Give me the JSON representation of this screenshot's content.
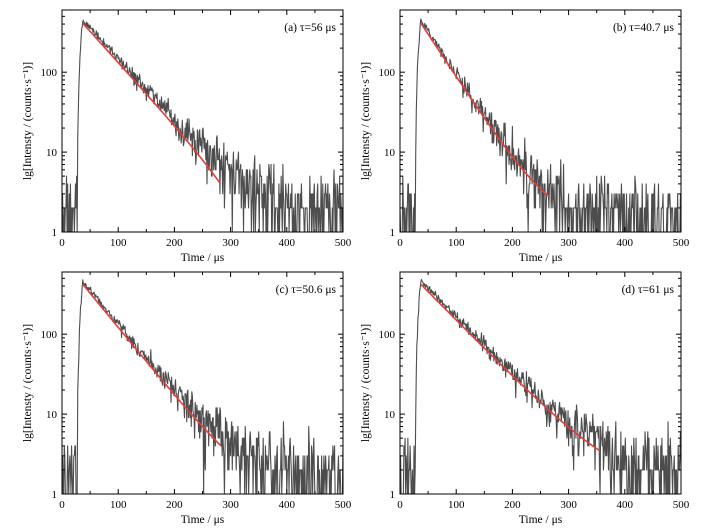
{
  "figure": {
    "background": "#ffffff",
    "data_color": "#4d4d4d",
    "fit_color": "#e0403a",
    "axis_color": "#000000"
  },
  "chart_data": [
    {
      "type": "line",
      "panel": "a",
      "annotation": "(a) τ=56 μs",
      "xlabel": "Time / μs",
      "ylabel": "lg[Intensty / (counts·s⁻¹)]",
      "xlim": [
        0,
        500
      ],
      "ylim": [
        1,
        600
      ],
      "yscale": "log",
      "xticks": [
        0,
        100,
        200,
        300,
        400,
        500
      ],
      "yticks": [
        1,
        10,
        100
      ],
      "grid": false,
      "series": [
        {
          "role": "measured decay",
          "peak_time": 37,
          "peak_value": 450,
          "tau": 56,
          "baseline": 1.6,
          "rise_start": 27,
          "x": [
            25,
            29,
            33,
            37,
            50,
            75,
            100,
            125,
            150,
            175,
            200,
            225,
            250,
            275,
            300,
            350,
            400,
            450,
            500
          ],
          "y": [
            1,
            60,
            380,
            450,
            360,
            230,
            145,
            92,
            60,
            38,
            25,
            16,
            10,
            6.5,
            4.5,
            2.7,
            2.0,
            1.8,
            1.6
          ]
        },
        {
          "role": "fit",
          "tau": 56,
          "x": [
            37,
            100,
            150,
            200,
            250,
            282
          ],
          "y": [
            410,
            130,
            55,
            22,
            9,
            4
          ]
        }
      ]
    },
    {
      "type": "line",
      "panel": "b",
      "annotation": "(b) τ=40.7 μs",
      "xlabel": "Time / μs",
      "ylabel": "lg[Intensty / (counts·s⁻¹)]",
      "xlim": [
        0,
        500
      ],
      "ylim": [
        1,
        600
      ],
      "yscale": "log",
      "xticks": [
        0,
        100,
        200,
        300,
        400,
        500
      ],
      "yticks": [
        1,
        10,
        100
      ],
      "grid": false,
      "series": [
        {
          "role": "measured decay",
          "peak_time": 37,
          "peak_value": 450,
          "tau": 40.7,
          "baseline": 1.6,
          "rise_start": 27,
          "x": [
            25,
            29,
            33,
            37,
            50,
            75,
            100,
            125,
            150,
            175,
            200,
            225,
            250,
            275,
            300,
            350,
            400,
            450,
            500
          ],
          "y": [
            1,
            60,
            380,
            450,
            330,
            170,
            85,
            45,
            24,
            13,
            8,
            5,
            3.5,
            2.6,
            2.2,
            1.9,
            1.7,
            1.6,
            1.6
          ]
        },
        {
          "role": "fit",
          "tau": 40.7,
          "x": [
            37,
            100,
            150,
            200,
            250,
            265
          ],
          "y": [
            410,
            85,
            25,
            8,
            3.5,
            2.8
          ]
        }
      ]
    },
    {
      "type": "line",
      "panel": "c",
      "annotation": "(c) τ=50.6 μs",
      "xlabel": "Time / μs",
      "ylabel": "lg[Intensty / (counts·s⁻¹)]",
      "xlim": [
        0,
        500
      ],
      "ylim": [
        1,
        600
      ],
      "yscale": "log",
      "xticks": [
        0,
        100,
        200,
        300,
        400,
        500
      ],
      "yticks": [
        1,
        10,
        100
      ],
      "grid": false,
      "series": [
        {
          "role": "measured decay",
          "peak_time": 37,
          "peak_value": 460,
          "tau": 50.6,
          "baseline": 1.8,
          "rise_start": 27,
          "x": [
            25,
            29,
            33,
            37,
            50,
            75,
            100,
            125,
            150,
            175,
            200,
            225,
            250,
            275,
            300,
            350,
            400,
            450,
            500
          ],
          "y": [
            1,
            60,
            390,
            460,
            350,
            200,
            115,
            68,
            40,
            24,
            15,
            10,
            7,
            5,
            4,
            2.8,
            2.2,
            2.0,
            1.8
          ]
        },
        {
          "role": "fit",
          "tau": 50.6,
          "x": [
            37,
            100,
            150,
            200,
            250,
            283
          ],
          "y": [
            420,
            120,
            42,
            16,
            7,
            4
          ]
        }
      ]
    },
    {
      "type": "line",
      "panel": "d",
      "annotation": "(d) τ=61 μs",
      "xlabel": "Time / μs",
      "ylabel": "lg[Intensty / (counts·s⁻¹)]",
      "xlim": [
        0,
        500
      ],
      "ylim": [
        1,
        600
      ],
      "yscale": "log",
      "xticks": [
        0,
        100,
        200,
        300,
        400,
        500
      ],
      "yticks": [
        1,
        10,
        100
      ],
      "grid": false,
      "series": [
        {
          "role": "measured decay",
          "peak_time": 37,
          "peak_value": 460,
          "tau": 61,
          "baseline": 1.8,
          "rise_start": 27,
          "x": [
            25,
            29,
            33,
            37,
            50,
            75,
            100,
            125,
            150,
            175,
            200,
            225,
            250,
            275,
            300,
            350,
            400,
            450,
            500
          ],
          "y": [
            1,
            60,
            390,
            460,
            370,
            230,
            150,
            100,
            66,
            44,
            29,
            19,
            13,
            8.5,
            6,
            3.5,
            2.5,
            2.0,
            1.8
          ]
        },
        {
          "role": "fit",
          "tau": 61,
          "x": [
            37,
            100,
            150,
            200,
            250,
            300,
            355
          ],
          "y": [
            420,
            150,
            65,
            28,
            12,
            6,
            3.5
          ]
        }
      ]
    }
  ]
}
